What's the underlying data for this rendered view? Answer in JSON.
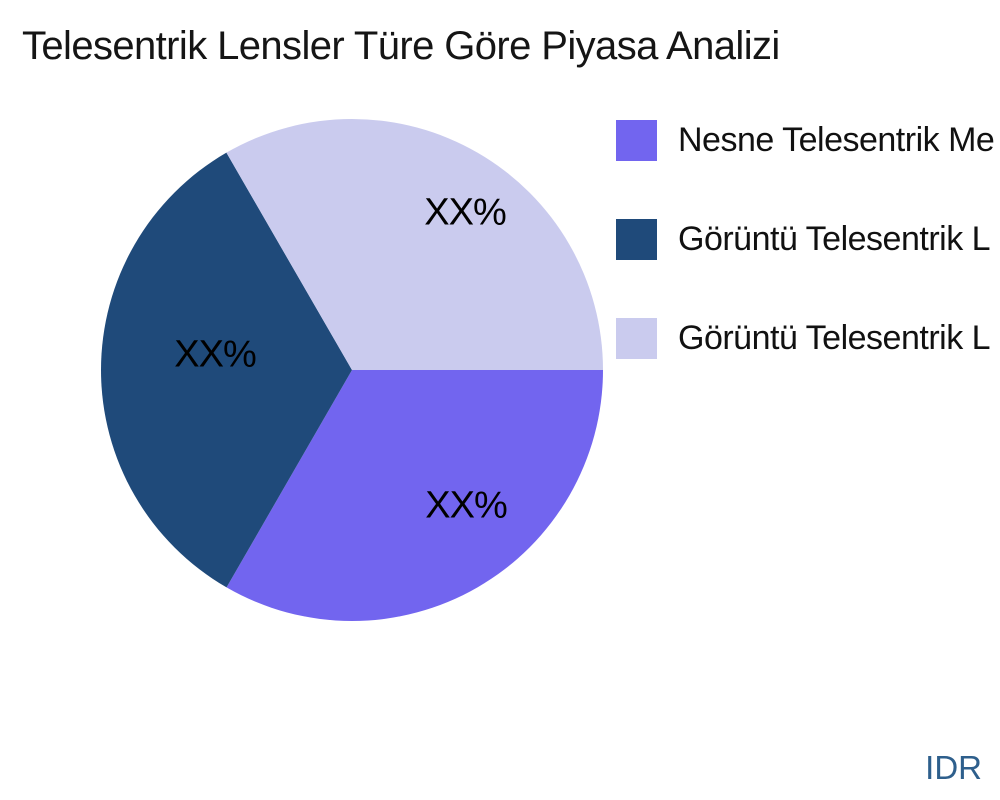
{
  "title": "Telesentrik Lensler Türe Göre Piyasa Analizi",
  "watermark": "IDR",
  "legend": {
    "position": "right",
    "items": [
      {
        "label": "Nesne Telesentrik Me",
        "color": "#7265EF"
      },
      {
        "label": "Görüntü Telesentrik L",
        "color": "#1F4A7A"
      },
      {
        "label": "Görüntü Telesentrik L",
        "color": "#CACBEE"
      }
    ]
  },
  "chart_data": {
    "type": "pie",
    "title": "Telesentrik Lensler Türe Göre Piyasa Analizi",
    "categories": [
      "Nesne Telesentrik Me",
      "Görüntü Telesentrik L",
      "Görüntü Telesentrik L"
    ],
    "values": [
      33.33,
      33.33,
      33.34
    ],
    "value_labels": [
      "XX%",
      "XX%",
      "XX%"
    ],
    "colors": [
      "#7265EF",
      "#1F4A7A",
      "#CACBEE"
    ],
    "start_angle_deg": 0,
    "direction": "clockwise",
    "legend_position": "right",
    "label_position": "inside"
  }
}
